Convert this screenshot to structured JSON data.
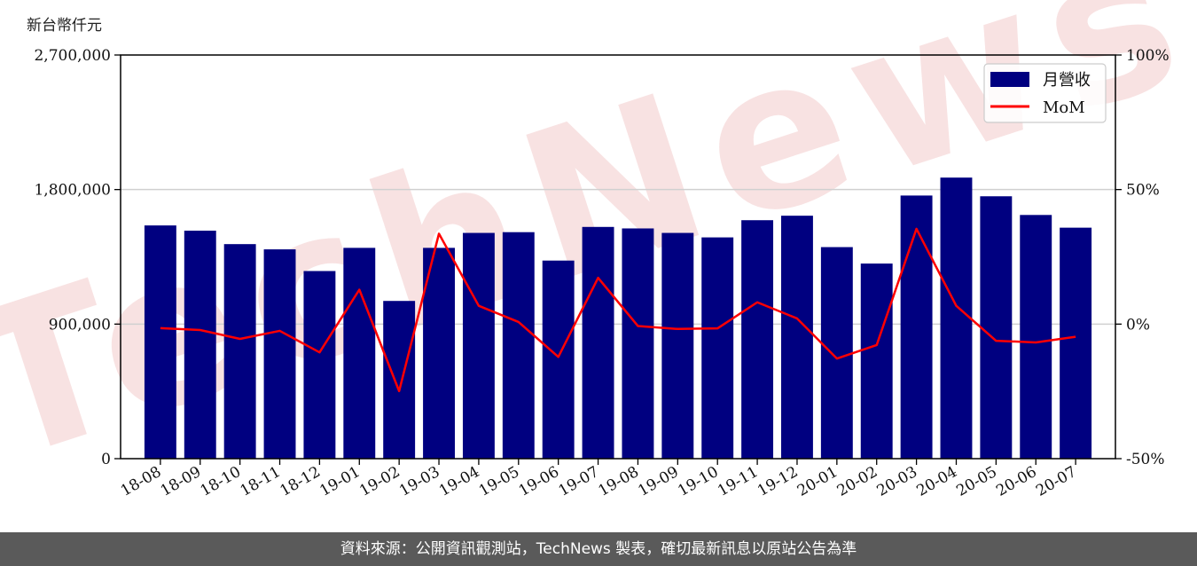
{
  "y_unit_label": "新台幣仟元",
  "footer_text": "資料來源：公開資訊觀測站，TechNews 製表，確切最新訊息以原站公告為準",
  "watermark": "TechNews",
  "colors": {
    "bar": "#000080",
    "line": "#ff0000",
    "grid": "#d0d0d0",
    "footer_bg": "#5a5a5a",
    "watermark": "#f2caca"
  },
  "chart_data": {
    "type": "bar",
    "categories": [
      "18-08",
      "18-09",
      "18-10",
      "18-11",
      "18-12",
      "19-01",
      "19-02",
      "19-03",
      "19-04",
      "19-05",
      "19-06",
      "19-07",
      "19-08",
      "19-09",
      "19-10",
      "19-11",
      "19-12",
      "20-01",
      "20-02",
      "20-03",
      "20-04",
      "20-05",
      "20-06",
      "20-07"
    ],
    "series": [
      {
        "name": "月營收",
        "type": "bar",
        "axis": "left",
        "values": [
          1560000,
          1525000,
          1435000,
          1400000,
          1255000,
          1410000,
          1055000,
          1410000,
          1510000,
          1515000,
          1325000,
          1550000,
          1540000,
          1510000,
          1480000,
          1595000,
          1625000,
          1415000,
          1305000,
          1760000,
          1880000,
          1755000,
          1630000,
          1545000
        ]
      },
      {
        "name": "MoM",
        "type": "line",
        "axis": "right",
        "values": [
          -1.5,
          -2.2,
          -5.5,
          -2.5,
          -10.5,
          12.8,
          -24.9,
          33.6,
          6.8,
          0.8,
          -12.2,
          17.2,
          -0.7,
          -1.8,
          -1.6,
          8.1,
          2.1,
          -12.8,
          -7.8,
          35.4,
          6.8,
          -6.2,
          -6.8,
          -4.7
        ]
      }
    ],
    "y_left": {
      "lim": [
        0,
        2700000
      ],
      "ticks": [
        0,
        900000,
        1800000,
        2700000
      ],
      "tick_labels": [
        "0",
        "900,000",
        "1,800,000",
        "2,700,000"
      ]
    },
    "y_right": {
      "lim": [
        -50,
        100
      ],
      "ticks": [
        -50,
        0,
        50,
        100
      ],
      "tick_labels": [
        "-50%",
        "0%",
        "50%",
        "100%"
      ]
    },
    "grid": "horizontal",
    "legend": "top-right"
  }
}
